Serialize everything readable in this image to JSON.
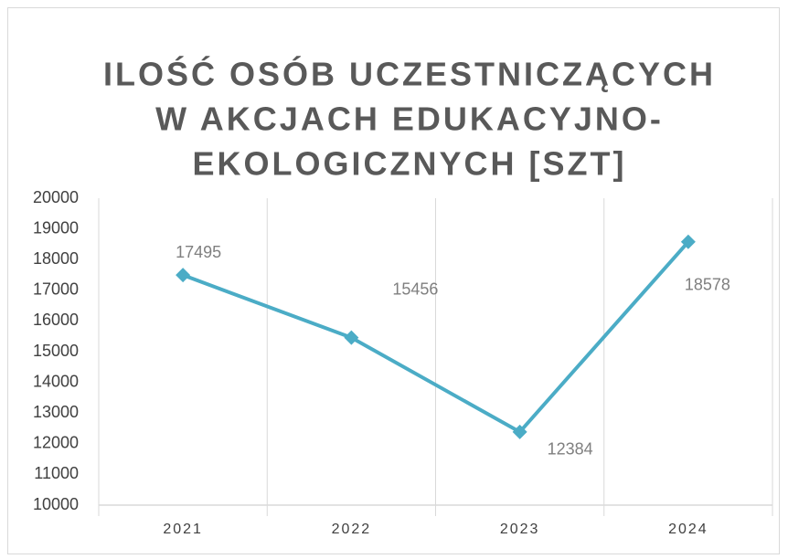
{
  "chart_data": {
    "type": "line",
    "title": [
      "ILOŚĆ OSÓB UCZESTNICZĄCYCH",
      "W AKCJACH EDUKACYJNO-",
      "EKOLOGICZNYCH [SZT]"
    ],
    "categories": [
      "2021",
      "2022",
      "2023",
      "2024"
    ],
    "values": [
      17495,
      15456,
      12384,
      18578
    ],
    "color": "#4bacc6",
    "ylim": [
      10000,
      20000
    ],
    "yticks": [
      10000,
      11000,
      12000,
      13000,
      14000,
      15000,
      16000,
      17000,
      18000,
      19000,
      20000
    ],
    "grid": true
  }
}
